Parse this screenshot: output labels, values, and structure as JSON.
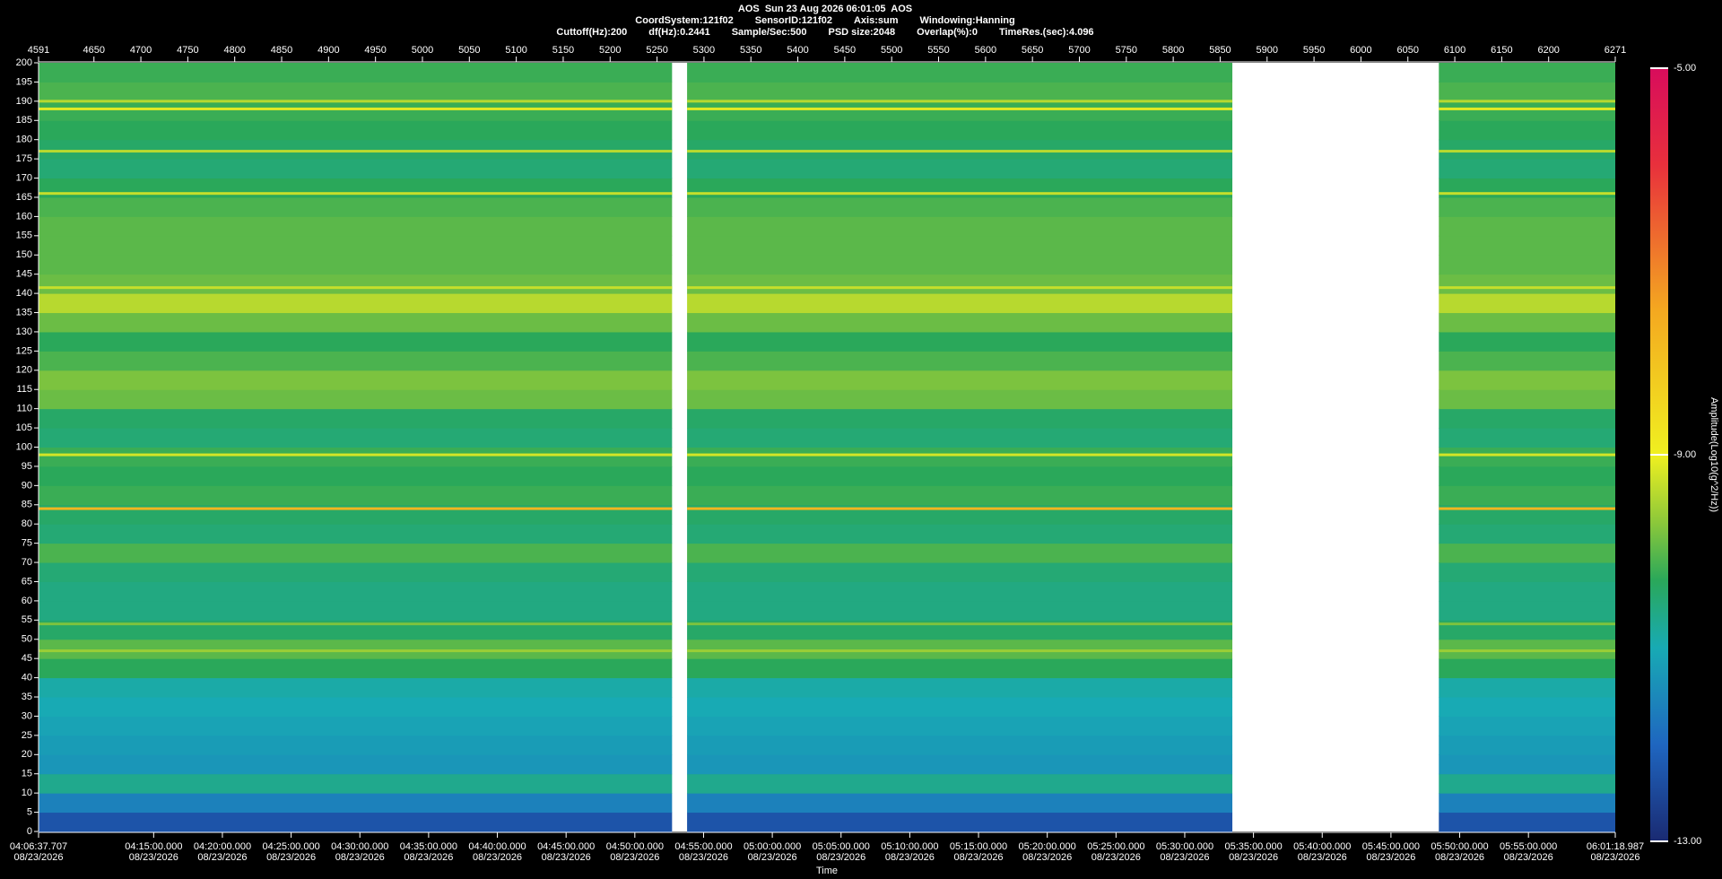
{
  "chart_data": {
    "type": "spectrogram",
    "title": "AOS  Sun 23 Aug 2026 06:01:05  AOS",
    "subtitle_line1": [
      "CoordSystem:121f02",
      "SensorID:121f02",
      "Axis:sum",
      "Windowing:Hanning"
    ],
    "subtitle_line2": [
      "Cuttoff(Hz):200",
      "df(Hz):0.2441",
      "Sample/Sec:500",
      "PSD size:2048",
      "Overlap(%):0",
      "TimeRes.(sec):4.096"
    ],
    "xlabel": "Time",
    "colorbar_label": "Amplitude(Log10(g^2/Hz))",
    "xlim": [
      4591,
      6271
    ],
    "xticks": [
      4591,
      4650,
      4700,
      4750,
      4800,
      4850,
      4900,
      4950,
      5000,
      5050,
      5100,
      5150,
      5200,
      5250,
      5300,
      5350,
      5400,
      5450,
      5500,
      5550,
      5600,
      5650,
      5700,
      5750,
      5800,
      5850,
      5900,
      5950,
      6000,
      6050,
      6100,
      6150,
      6200,
      6271
    ],
    "x2lim": [
      14797.707,
      21678.987
    ],
    "x2ticks": [
      {
        "value": 14797.707,
        "label": "04:06:37.707"
      },
      {
        "value": 15300,
        "label": "04:15:00.000"
      },
      {
        "value": 15600,
        "label": "04:20:00.000"
      },
      {
        "value": 15900,
        "label": "04:25:00.000"
      },
      {
        "value": 16200,
        "label": "04:30:00.000"
      },
      {
        "value": 16500,
        "label": "04:35:00.000"
      },
      {
        "value": 16800,
        "label": "04:40:00.000"
      },
      {
        "value": 17100,
        "label": "04:45:00.000"
      },
      {
        "value": 17400,
        "label": "04:50:00.000"
      },
      {
        "value": 17700,
        "label": "04:55:00.000"
      },
      {
        "value": 18000,
        "label": "05:00:00.000"
      },
      {
        "value": 18300,
        "label": "05:05:00.000"
      },
      {
        "value": 18600,
        "label": "05:10:00.000"
      },
      {
        "value": 18900,
        "label": "05:15:00.000"
      },
      {
        "value": 19200,
        "label": "05:20:00.000"
      },
      {
        "value": 19500,
        "label": "05:25:00.000"
      },
      {
        "value": 19800,
        "label": "05:30:00.000"
      },
      {
        "value": 20100,
        "label": "05:35:00.000"
      },
      {
        "value": 20400,
        "label": "05:40:00.000"
      },
      {
        "value": 20700,
        "label": "05:45:00.000"
      },
      {
        "value": 21000,
        "label": "05:50:00.000"
      },
      {
        "value": 21300,
        "label": "05:55:00.000"
      },
      {
        "value": 21678.987,
        "label": "06:01:18.987"
      }
    ],
    "x2tick_dates": [
      "08/23/2026",
      "08/23/2026",
      "08/23/2026",
      "08/23/2026",
      "08/23/2026",
      "08/23/2026",
      "08/23/2026",
      "08/23/2026",
      "08/23/2026",
      "08/23/2026",
      "08/23/2026",
      "08/23/2026",
      "08/23/2026",
      "08/23/2026",
      "08/23/2026",
      "08/23/2026",
      "08/23/2026",
      "08/23/2026",
      "08/23/2026",
      "08/23/2026",
      "08/23/2026",
      "08/23/2026",
      "08/23/2026"
    ],
    "ylim": [
      0,
      200
    ],
    "yticks": [
      0,
      5,
      10,
      15,
      20,
      25,
      30,
      35,
      40,
      45,
      50,
      55,
      60,
      65,
      70,
      75,
      80,
      85,
      90,
      95,
      100,
      105,
      110,
      115,
      120,
      125,
      130,
      135,
      140,
      145,
      150,
      155,
      160,
      165,
      170,
      175,
      180,
      185,
      190,
      195,
      200
    ],
    "segments": [
      [
        4591,
        5266
      ],
      [
        5282,
        5863
      ],
      [
        6083,
        6271
      ]
    ],
    "bins": [
      0,
      5,
      10,
      15,
      20,
      25,
      30,
      35,
      40,
      45,
      50,
      55,
      60,
      65,
      70,
      75,
      80,
      85,
      90,
      95,
      100,
      105,
      110,
      115,
      120,
      125,
      130,
      135,
      140,
      145,
      150,
      155,
      160,
      165,
      170,
      175,
      180,
      185,
      190,
      195,
      200
    ],
    "amplitudes": [
      -12.3,
      -11.6,
      -10.7,
      -11.3,
      -11.2,
      -11.1,
      -11.0,
      -10.9,
      -10.3,
      -10.0,
      -10.4,
      -10.6,
      -10.6,
      -10.5,
      -10.1,
      -10.5,
      -10.4,
      -10.2,
      -10.3,
      -10.2,
      -10.5,
      -10.4,
      -9.9,
      -9.8,
      -10.1,
      -10.3,
      -9.9,
      -9.4,
      -9.9,
      -10.0,
      -10.0,
      -10.0,
      -10.1,
      -10.3,
      -10.5,
      -10.4,
      -10.3,
      -10.2,
      -10.1,
      -10.2
    ],
    "line_freqs": [
      47,
      54,
      84,
      98,
      141.5,
      166,
      177,
      188,
      190
    ],
    "line_amps": [
      -9.6,
      -9.8,
      -7.8,
      -9.2,
      -9.3,
      -9.3,
      -9.4,
      -9.1,
      -9.4
    ],
    "clim": [
      -13,
      -5
    ],
    "cticks": [
      {
        "value": -5,
        "label": "-5.00"
      },
      {
        "value": -9,
        "label": "-9.00"
      },
      {
        "value": -13,
        "label": "-13.00"
      }
    ],
    "colormap": [
      [
        -13,
        "#1a2a72"
      ],
      [
        -12,
        "#1f66c0"
      ],
      [
        -11,
        "#18aab4"
      ],
      [
        -10.3,
        "#2aa85a"
      ],
      [
        -9.7,
        "#8cc83a"
      ],
      [
        -9,
        "#f0f020"
      ],
      [
        -7.5,
        "#f4a820"
      ],
      [
        -6,
        "#e8303c"
      ],
      [
        -5,
        "#d80c5c"
      ]
    ]
  }
}
